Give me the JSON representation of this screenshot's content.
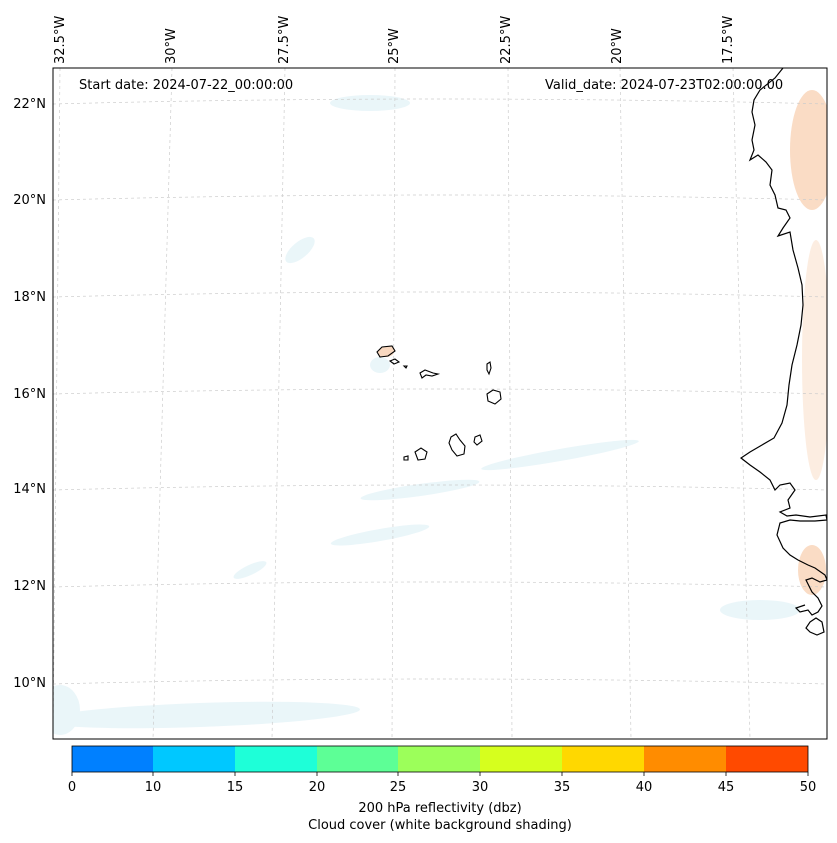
{
  "map": {
    "start_date_label": "Start date: 2024-07-22_00:00:00",
    "valid_date_label": "Valid_date: 2024-07-23T02:00:00.00",
    "lon_labels": [
      "32.5°W",
      "30°W",
      "27.5°W",
      "25°W",
      "22.5°W",
      "20°W",
      "17.5°W"
    ],
    "lat_labels": [
      "22°N",
      "20°N",
      "18°N",
      "16°N",
      "14°N",
      "12°N",
      "10°N"
    ]
  },
  "colorbar": {
    "ticks": [
      "0",
      "10",
      "15",
      "20",
      "25",
      "30",
      "35",
      "40",
      "45",
      "50"
    ],
    "colors": [
      "#0080ff",
      "#00c8ff",
      "#1effd8",
      "#5dff96",
      "#9cff5a",
      "#d6ff1e",
      "#ffd800",
      "#ff8c00",
      "#ff4a00"
    ],
    "label_line1": "200 hPa reflectivity (dbz)",
    "label_line2": "Cloud cover (white background shading)"
  }
}
